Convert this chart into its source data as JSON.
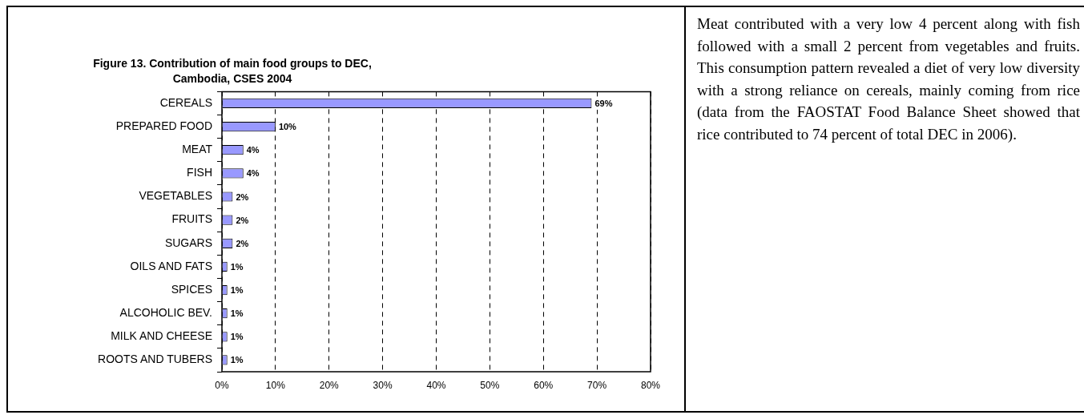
{
  "chart_data": {
    "type": "bar",
    "orientation": "horizontal",
    "title": "Figure 13. Contribution of main food groups to DEC, Cambodia, CSES 2004",
    "categories": [
      "CEREALS",
      "PREPARED FOOD",
      "MEAT",
      "FISH",
      "VEGETABLES",
      "FRUITS",
      "SUGARS",
      "OILS AND FATS",
      "SPICES",
      "ALCOHOLIC BEV.",
      "MILK AND CHEESE",
      "ROOTS AND TUBERS"
    ],
    "values": [
      69,
      10,
      4,
      4,
      2,
      2,
      2,
      1,
      1,
      1,
      1,
      1
    ],
    "value_labels": [
      "69%",
      "10%",
      "4%",
      "4%",
      "2%",
      "2%",
      "2%",
      "1%",
      "1%",
      "1%",
      "1%",
      "1%"
    ],
    "color": "#9999ff",
    "xlim": [
      0,
      80
    ],
    "xticks": [
      {
        "value": 0,
        "label": "0%"
      },
      {
        "value": 10,
        "label": "10%"
      },
      {
        "value": 20,
        "label": "20%"
      },
      {
        "value": 30,
        "label": "30%"
      },
      {
        "value": 40,
        "label": "40%"
      },
      {
        "value": 50,
        "label": "50%"
      },
      {
        "value": 60,
        "label": "60%"
      },
      {
        "value": 70,
        "label": "70%"
      },
      {
        "value": 80,
        "label": "80%"
      }
    ],
    "grid": "x",
    "annotations": [
      "Meat contributed with a very low 4 percent along with fish followed with a small 2 percent from vegetables and fruits. This consumption pattern revealed a diet of very low diversity with a strong reliance on cereals, mainly coming from rice (data from the FAOSTAT Food Balance Sheet showed that rice contributed to 74 percent of total DEC in 2006)."
    ]
  }
}
